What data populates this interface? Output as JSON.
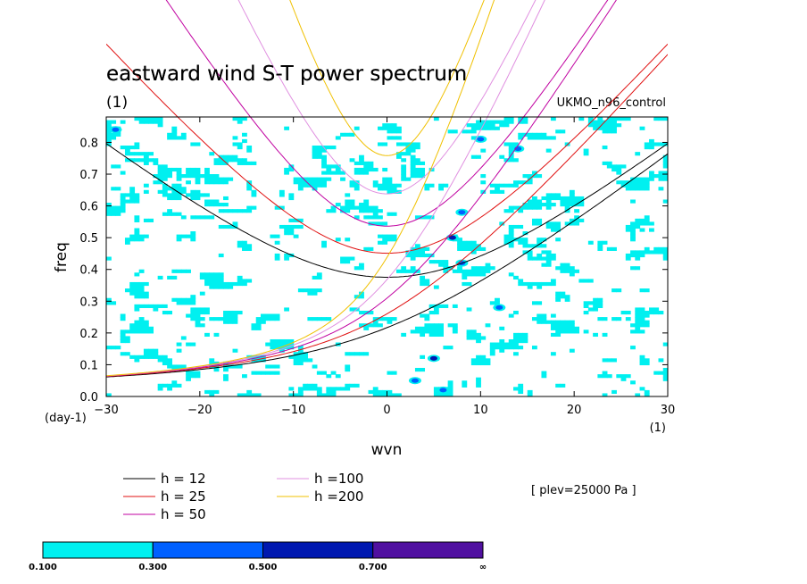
{
  "chart_data": {
    "type": "heatmap",
    "title": "eastward wind S-T power spectrum",
    "subtitle_left": "(1)",
    "subtitle_right": "UKMO_n96_control",
    "xlabel": "wvn",
    "ylabel": "freq",
    "x_unit_label": "(1)",
    "y_unit_label": "(day-1)",
    "xlim": [
      -30,
      30
    ],
    "ylim": [
      0,
      0.88
    ],
    "x_ticks": [
      "−30",
      "−20",
      "−10",
      "0",
      "10",
      "20",
      "30"
    ],
    "x_tick_values": [
      -30,
      -20,
      -10,
      0,
      10,
      20,
      30
    ],
    "y_ticks": [
      "0.0",
      "0.1",
      "0.2",
      "0.3",
      "0.4",
      "0.5",
      "0.6",
      "0.7",
      "0.8"
    ],
    "y_tick_values": [
      0,
      0.1,
      0.2,
      0.3,
      0.4,
      0.5,
      0.6,
      0.7,
      0.8
    ],
    "annotation": "[ plev=25000 Pa ]",
    "dispersion_curves": [
      {
        "label": "h = 12",
        "h": 12,
        "color": "#000000"
      },
      {
        "label": "h = 25",
        "h": 25,
        "color": "#e01010"
      },
      {
        "label": "h = 50",
        "h": 50,
        "color": "#c000a0"
      },
      {
        "label": "h =100",
        "h": 100,
        "color": "#e090e0"
      },
      {
        "label": "h =200",
        "h": 200,
        "color": "#f0c000"
      }
    ],
    "colorbar": {
      "levels": [
        "0.100",
        "0.300",
        "0.500",
        "0.700",
        "∞"
      ],
      "colors": [
        "#00f0f0",
        "#0060ff",
        "#0018b0",
        "#5010a0"
      ]
    },
    "hotspots": [
      {
        "x": 6,
        "y": 0.02,
        "level": 1
      },
      {
        "x": 5,
        "y": 0.12,
        "level": 2
      },
      {
        "x": 7,
        "y": 0.5,
        "level": 2
      },
      {
        "x": 8,
        "y": 0.42,
        "level": 1
      },
      {
        "x": 10,
        "y": 0.81,
        "level": 1
      },
      {
        "x": 14,
        "y": 0.78,
        "level": 1
      },
      {
        "x": 3,
        "y": 0.05,
        "level": 1
      },
      {
        "x": 8,
        "y": 0.58,
        "level": 1
      },
      {
        "x": -29,
        "y": 0.84,
        "level": 1
      },
      {
        "x": 12,
        "y": 0.28,
        "level": 1
      }
    ]
  }
}
